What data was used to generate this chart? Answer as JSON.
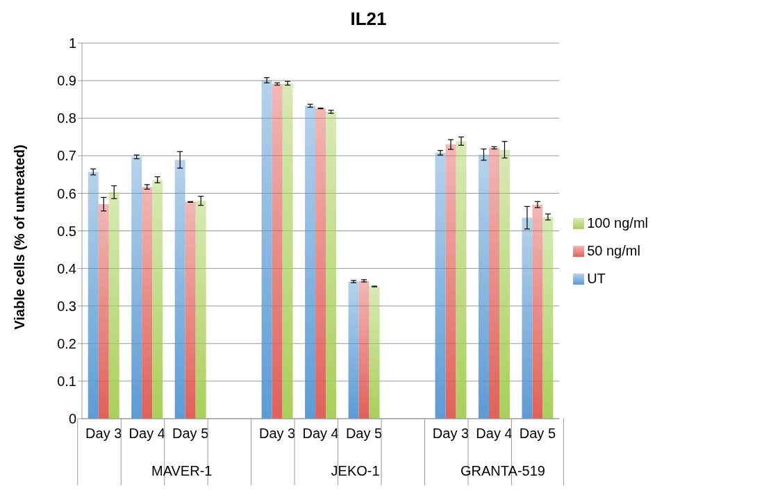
{
  "chart_data": {
    "type": "bar",
    "title": "IL21",
    "ylabel": "Viable cells (% of untreated)",
    "categories": [
      "Day 3",
      "Day 4",
      "Day 5",
      null,
      "Day 3",
      "Day 4",
      "Day 5",
      null,
      "Day 3",
      "Day 4",
      "Day 5"
    ],
    "annotations": [
      "MAVER-1",
      "JEKO-1",
      "GRANTA-519"
    ],
    "series": [
      {
        "name": "UT",
        "color": "#5b9bd5",
        "values": [
          0.657,
          0.697,
          0.689,
          null,
          0.901,
          0.833,
          0.365,
          null,
          0.708,
          0.703,
          0.535
        ],
        "errors": [
          0.008,
          0.005,
          0.022,
          null,
          0.007,
          0.004,
          0.003,
          null,
          0.006,
          0.015,
          0.03
        ]
      },
      {
        "name": "50 ng/ml",
        "color": "#e0605a",
        "values": [
          0.571,
          0.617,
          0.577,
          null,
          0.891,
          0.826,
          0.367,
          null,
          0.73,
          0.721,
          0.57
        ],
        "errors": [
          0.018,
          0.006,
          0.001,
          null,
          0.003,
          0.001,
          0.003,
          null,
          0.013,
          0.003,
          0.008
        ]
      },
      {
        "name": "100 ng/ml",
        "color": "#a9cf5a",
        "values": [
          0.603,
          0.636,
          0.58,
          null,
          0.893,
          0.817,
          0.352,
          null,
          0.739,
          0.716,
          0.537
        ],
        "errors": [
          0.017,
          0.008,
          0.012,
          null,
          0.005,
          0.004,
          0.001,
          null,
          0.011,
          0.022,
          0.008
        ]
      }
    ],
    "ylim": [
      0,
      1
    ],
    "yticks": [
      0,
      0.1,
      0.2,
      0.3,
      0.4,
      0.5,
      0.6,
      0.7,
      0.8,
      0.9,
      1
    ],
    "grid": "y",
    "legend": "right"
  }
}
